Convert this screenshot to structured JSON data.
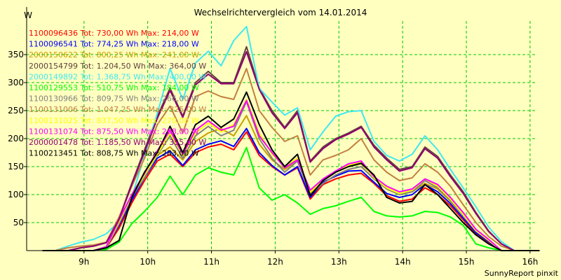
{
  "chart_data": {
    "type": "line",
    "title": "Wechselrichtervergleich vom 14.01.2014",
    "yunit": "W",
    "footer": "SunnyReport pinxit",
    "xlim": [
      8.1,
      16.1
    ],
    "ylim": [
      0,
      400
    ],
    "xticks": [
      9,
      10,
      11,
      12,
      13,
      14,
      15,
      16
    ],
    "xtick_labels": [
      "9h",
      "10h",
      "11h",
      "12h",
      "13h",
      "14h",
      "15h",
      "16h"
    ],
    "yticks": [
      50,
      100,
      150,
      200,
      250,
      300,
      350
    ],
    "grid": true,
    "legend_position": "top-left",
    "x": [
      8.35,
      8.55,
      8.75,
      8.95,
      9.15,
      9.35,
      9.55,
      9.75,
      9.95,
      10.15,
      10.35,
      10.55,
      10.75,
      10.95,
      11.15,
      11.35,
      11.55,
      11.75,
      11.95,
      12.15,
      12.35,
      12.55,
      12.75,
      12.95,
      13.15,
      13.35,
      13.55,
      13.75,
      13.95,
      14.15,
      14.35,
      14.55,
      14.75,
      14.95,
      15.15,
      15.35,
      15.55,
      15.75,
      15.95,
      16.15
    ],
    "series": [
      {
        "id": "1100096436",
        "legend": "1100096436 Tot: 730,00 Wh Max: 214,00 W",
        "color": "#ff0000",
        "values": [
          0,
          0,
          0,
          0,
          0,
          5,
          40,
          85,
          125,
          160,
          172,
          150,
          175,
          185,
          190,
          180,
          212,
          170,
          150,
          135,
          148,
          92,
          118,
          128,
          135,
          138,
          120,
          98,
          88,
          92,
          112,
          100,
          80,
          55,
          30,
          15,
          0,
          0,
          0,
          0
        ]
      },
      {
        "id": "1100096541",
        "legend": "1100096541 Tot: 774,25 Wh Max: 218,00 W",
        "color": "#0000ff",
        "values": [
          0,
          0,
          0,
          0,
          0,
          6,
          45,
          90,
          130,
          165,
          178,
          152,
          180,
          190,
          196,
          186,
          218,
          175,
          152,
          135,
          150,
          95,
          122,
          133,
          142,
          143,
          122,
          102,
          95,
          100,
          118,
          105,
          84,
          58,
          32,
          16,
          0,
          0,
          0,
          0
        ]
      },
      {
        "id": "2000150622",
        "legend": "2000150622 Tot: 800,25 Wh Max: 241,00 W",
        "color": "#c8a000",
        "values": [
          0,
          0,
          0,
          0,
          0,
          6,
          48,
          95,
          132,
          170,
          185,
          162,
          195,
          210,
          218,
          205,
          241,
          190,
          162,
          145,
          160,
          103,
          125,
          140,
          150,
          155,
          132,
          110,
          100,
          105,
          120,
          110,
          88,
          62,
          35,
          18,
          0,
          0,
          0,
          0
        ]
      },
      {
        "id": "2000154799",
        "legend": "2000154799 Tot: 1.204,50 Wh Max: 364,00 W",
        "color": "#604040",
        "values": [
          0,
          0,
          0,
          5,
          8,
          15,
          58,
          120,
          180,
          240,
          290,
          240,
          300,
          320,
          300,
          300,
          364,
          290,
          250,
          220,
          250,
          160,
          185,
          200,
          210,
          222,
          188,
          165,
          145,
          150,
          185,
          168,
          135,
          105,
          68,
          35,
          12,
          0,
          0,
          0
        ]
      },
      {
        "id": "2000149892",
        "legend": "2000149892 Tot: 1.368,75 Wh Max: 400,00 W",
        "color": "#40e8f0",
        "values": [
          0,
          0,
          8,
          15,
          20,
          30,
          52,
          95,
          170,
          245,
          325,
          270,
          335,
          356,
          330,
          375,
          400,
          290,
          265,
          242,
          255,
          180,
          212,
          240,
          248,
          250,
          195,
          170,
          160,
          172,
          205,
          180,
          145,
          112,
          78,
          42,
          16,
          0,
          0,
          0
        ]
      },
      {
        "id": "1100129553",
        "legend": "1100129553 Tot: 510,75 Wh Max: 184,00 W",
        "color": "#00ff00",
        "values": [
          0,
          0,
          0,
          0,
          0,
          2,
          15,
          48,
          70,
          95,
          133,
          100,
          135,
          148,
          140,
          135,
          184,
          112,
          90,
          100,
          85,
          65,
          75,
          80,
          88,
          95,
          70,
          62,
          60,
          62,
          70,
          68,
          60,
          45,
          12,
          5,
          0,
          0,
          0,
          0
        ]
      },
      {
        "id": "1100130966",
        "legend": "1100130966 Tot: 809,75 Wh Max: 266,00 W",
        "color": "#808080",
        "values": [
          0,
          0,
          0,
          0,
          0,
          6,
          50,
          95,
          130,
          170,
          205,
          165,
          205,
          222,
          205,
          215,
          266,
          200,
          165,
          140,
          160,
          100,
          120,
          135,
          145,
          150,
          128,
          110,
          100,
          105,
          125,
          112,
          90,
          62,
          35,
          18,
          0,
          0,
          0,
          0
        ]
      },
      {
        "id": "1100131006",
        "legend": "1100131006 Tot: 1.047,25 Wh Max: 325,00 W",
        "color": "#c08040",
        "values": [
          0,
          0,
          5,
          8,
          10,
          15,
          60,
          115,
          165,
          225,
          258,
          210,
          275,
          285,
          275,
          270,
          325,
          250,
          220,
          195,
          205,
          135,
          162,
          170,
          180,
          200,
          162,
          140,
          125,
          130,
          155,
          140,
          115,
          82,
          50,
          25,
          8,
          0,
          0,
          0
        ]
      },
      {
        "id": "1100131025",
        "legend": "1100131025 Tot: 837,50 Wh Max: 270,00 W",
        "color": "#ffff00",
        "values": [
          0,
          0,
          0,
          0,
          0,
          6,
          52,
          98,
          135,
          172,
          210,
          170,
          210,
          228,
          212,
          225,
          270,
          210,
          172,
          150,
          165,
          105,
          125,
          140,
          152,
          158,
          130,
          112,
          102,
          108,
          128,
          115,
          92,
          64,
          36,
          18,
          0,
          0,
          0,
          0
        ]
      },
      {
        "id": "1100131074",
        "legend": "1100131074 Tot: 875,50 Wh Max: 268,00 W",
        "color": "#ff00ff",
        "values": [
          0,
          0,
          0,
          0,
          0,
          7,
          55,
          100,
          138,
          178,
          215,
          172,
          215,
          232,
          215,
          222,
          268,
          205,
          175,
          148,
          162,
          108,
          128,
          142,
          155,
          160,
          132,
          115,
          105,
          110,
          128,
          118,
          95,
          68,
          38,
          20,
          0,
          0,
          0,
          0
        ]
      },
      {
        "id": "2000001478",
        "legend": "2000001478 Tot: 1.185,50 Wh Max: 355,00 W",
        "color": "#900070",
        "values": [
          0,
          0,
          0,
          5,
          8,
          14,
          56,
          118,
          176,
          236,
          286,
          238,
          296,
          315,
          298,
          298,
          355,
          288,
          246,
          218,
          246,
          158,
          182,
          198,
          208,
          220,
          185,
          162,
          142,
          148,
          182,
          165,
          132,
          102,
          66,
          34,
          12,
          0,
          0,
          0
        ]
      },
      {
        "id": "1100213451",
        "legend": "1100213451 Tot: 808,75 Wh Max: 283,00 W",
        "color": "#000000",
        "values": [
          0,
          0,
          0,
          0,
          0,
          5,
          18,
          95,
          140,
          175,
          222,
          175,
          225,
          240,
          220,
          235,
          283,
          225,
          180,
          150,
          172,
          98,
          125,
          140,
          150,
          156,
          135,
          95,
          85,
          88,
          118,
          100,
          75,
          50,
          28,
          12,
          0,
          0,
          0,
          0
        ]
      }
    ]
  }
}
